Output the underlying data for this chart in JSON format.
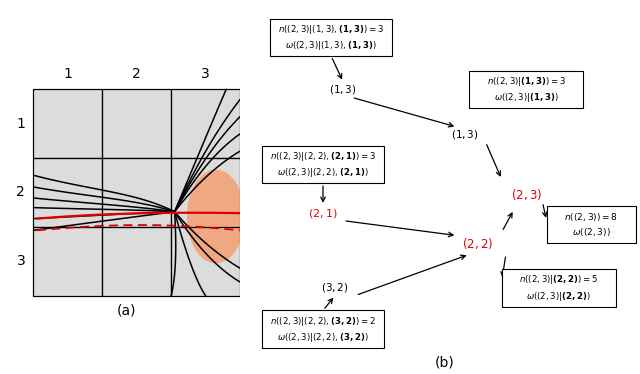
{
  "fig_width": 6.4,
  "fig_height": 3.74,
  "bg_color": "#ffffff",
  "cell_gray": "#dcdcdc",
  "cell_orange": "#f0a882",
  "red_color": "#dd0000",
  "label_a": "(a)",
  "label_b": "(b)",
  "col_labels": [
    "1",
    "2",
    "3"
  ],
  "row_labels": [
    "1",
    "2",
    "3"
  ]
}
